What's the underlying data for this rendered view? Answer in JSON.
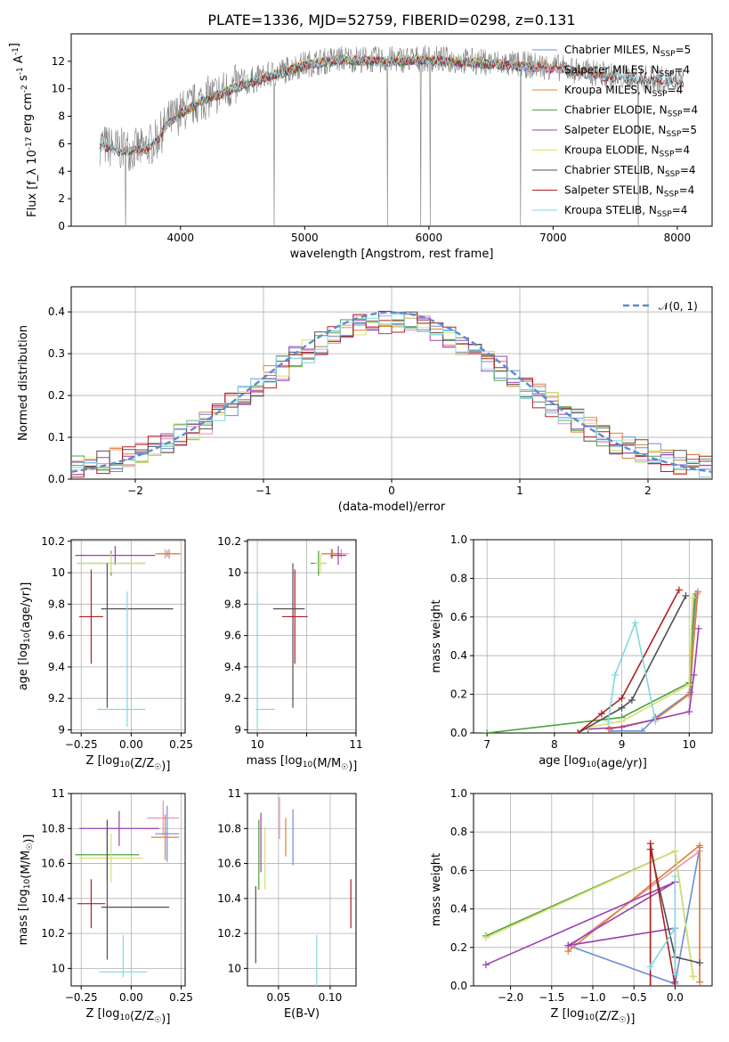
{
  "title": "PLATE=1336, MJD=52759, FIBERID=0298, z=0.131",
  "series_colors": {
    "chabrier_miles": "#6b8fd6",
    "salpeter_miles": "#e88fb8",
    "kroupa_miles": "#e08030",
    "chabrier_elodie": "#50a040",
    "salpeter_elodie": "#9a40b0",
    "kroupa_elodie": "#d8e070",
    "chabrier_stelib": "#505050",
    "salpeter_stelib": "#b02020",
    "kroupa_stelib": "#80d8e0",
    "normal": "#5b8bd0"
  },
  "chart_data": [
    {
      "id": "spectrum",
      "type": "line",
      "xlabel": "wavelength [Angstrom, rest frame]",
      "ylabel": "Flux [f_λ 10^-17 erg cm^-2 s^-1 A^-1]",
      "xlim": [
        3120,
        8280
      ],
      "ylim": [
        0,
        14
      ],
      "xticks": [
        4000,
        5000,
        6000,
        7000,
        8000
      ],
      "yticks": [
        0,
        2,
        4,
        6,
        8,
        10,
        12
      ],
      "grid": false,
      "legend_position": "top-right",
      "legend": [
        {
          "key": "chabrier_miles",
          "main": "Chabrier MILES, N",
          "sub": "SSP",
          "tail": "=5"
        },
        {
          "key": "salpeter_miles",
          "main": "Salpeter MILES, N",
          "sub": "SSP",
          "tail": "=4"
        },
        {
          "key": "kroupa_miles",
          "main": "Kroupa MILES, N",
          "sub": "SSP",
          "tail": "=4"
        },
        {
          "key": "chabrier_elodie",
          "main": "Chabrier ELODIE, N",
          "sub": "SSP",
          "tail": "=4"
        },
        {
          "key": "salpeter_elodie",
          "main": "Salpeter ELODIE, N",
          "sub": "SSP",
          "tail": "=5"
        },
        {
          "key": "kroupa_elodie",
          "main": "Kroupa ELODIE, N",
          "sub": "SSP",
          "tail": "=4"
        },
        {
          "key": "chabrier_stelib",
          "main": "Chabrier STELIB, N",
          "sub": "SSP",
          "tail": "=4"
        },
        {
          "key": "salpeter_stelib",
          "main": "Salpeter STELIB, N",
          "sub": "SSP",
          "tail": "=4"
        },
        {
          "key": "kroupa_stelib",
          "main": "Kroupa STELIB, N",
          "sub": "SSP",
          "tail": "=4"
        }
      ],
      "continuum": [
        [
          3350,
          6.0
        ],
        [
          3500,
          5.6
        ],
        [
          3700,
          5.6
        ],
        [
          3800,
          6.2
        ],
        [
          3900,
          7.6
        ],
        [
          4000,
          8.3
        ],
        [
          4200,
          9.3
        ],
        [
          4500,
          10.4
        ],
        [
          5000,
          11.8
        ],
        [
          5300,
          12.2
        ],
        [
          5600,
          12.1
        ],
        [
          6000,
          12.2
        ],
        [
          6500,
          11.9
        ],
        [
          7000,
          11.6
        ],
        [
          7500,
          10.9
        ],
        [
          8000,
          10.6
        ],
        [
          8050,
          10.5
        ]
      ]
    },
    {
      "id": "residuals",
      "type": "histogram",
      "xlabel": "(data-model)/error",
      "ylabel": "Normed distribution",
      "xlim": [
        -2.5,
        2.5
      ],
      "ylim": [
        0,
        0.46
      ],
      "xticks": [
        -2,
        -1,
        0,
        1,
        2
      ],
      "yticks": [
        0.0,
        0.1,
        0.2,
        0.3,
        0.4
      ],
      "grid": true,
      "legend_position": "top-right",
      "legend": [
        {
          "label": "𝒩(0, 1)",
          "style": "dashed"
        }
      ],
      "normal": {
        "mean": 0,
        "sigma": 1
      }
    },
    {
      "id": "age-vs-Z",
      "type": "errorbar",
      "xlabel": "Z [log10(Z/Z☉)]",
      "ylabel": "age [log10(age/yr)]",
      "xlim": [
        -0.3,
        0.27
      ],
      "ylim": [
        8.98,
        10.21
      ],
      "xticks": [
        -0.25,
        0.0,
        0.25
      ],
      "xtick_labels": [
        "−0.25",
        "0.00",
        "0.25"
      ],
      "yticks": [
        9.0,
        9.2,
        9.4,
        9.6,
        9.8,
        10.0,
        10.2
      ],
      "grid": true,
      "points": [
        {
          "s": "chabrier_miles",
          "x": 0.18,
          "xerr": 0.06,
          "y": 10.12,
          "yerr": 0.02
        },
        {
          "s": "salpeter_miles",
          "x": 0.17,
          "xerr": 0.05,
          "y": 10.12,
          "yerr": 0.03
        },
        {
          "s": "kroupa_miles",
          "x": 0.19,
          "xerr": 0.06,
          "y": 10.12,
          "yerr": 0.03
        },
        {
          "s": "chabrier_elodie",
          "x": -0.1,
          "xerr": 0.17,
          "y": 10.06,
          "yerr": 0.08
        },
        {
          "s": "salpeter_elodie",
          "x": -0.08,
          "xerr": 0.2,
          "y": 10.11,
          "yerr": 0.06
        },
        {
          "s": "kroupa_elodie",
          "x": -0.1,
          "xerr": 0.17,
          "y": 10.06,
          "yerr": 0.06
        },
        {
          "s": "chabrier_stelib",
          "x": -0.12,
          "xerr": 0.0,
          "y": 9.6,
          "yerr": 0.46
        },
        {
          "s": "chabrier_stelib",
          "x": 0.03,
          "xerr": 0.18,
          "y": 9.77,
          "yerr": 0.0
        },
        {
          "s": "salpeter_stelib",
          "x": -0.2,
          "xerr": 0.06,
          "y": 9.72,
          "yerr": 0.3
        },
        {
          "s": "kroupa_stelib",
          "x": -0.02,
          "xerr": 0.0,
          "y": 9.45,
          "yerr": 0.43
        },
        {
          "s": "kroupa_stelib",
          "x": -0.05,
          "xerr": 0.12,
          "y": 9.13,
          "yerr": 0.0
        }
      ]
    },
    {
      "id": "age-vs-mass",
      "type": "errorbar",
      "xlabel": "mass [log10(M/M☉)]",
      "ylabel": "",
      "xlim": [
        9.9,
        11.0
      ],
      "ylim": [
        8.98,
        10.21
      ],
      "xticks": [
        10,
        10.5,
        11
      ],
      "xtick_labels": [
        "10",
        "",
        "11"
      ],
      "yticks": [
        9.0,
        9.2,
        9.4,
        9.6,
        9.8,
        10.0,
        10.2
      ],
      "grid": true,
      "points": [
        {
          "s": "chabrier_miles",
          "x": 10.75,
          "xerr": 0.1,
          "y": 10.12,
          "yerr": 0.03
        },
        {
          "s": "salpeter_miles",
          "x": 10.85,
          "xerr": 0.08,
          "y": 10.12,
          "yerr": 0.03
        },
        {
          "s": "kroupa_miles",
          "x": 10.76,
          "xerr": 0.1,
          "y": 10.12,
          "yerr": 0.03
        },
        {
          "s": "chabrier_elodie",
          "x": 10.62,
          "xerr": 0.08,
          "y": 10.06,
          "yerr": 0.08
        },
        {
          "s": "salpeter_elodie",
          "x": 10.82,
          "xerr": 0.08,
          "y": 10.11,
          "yerr": 0.06
        },
        {
          "s": "kroupa_elodie",
          "x": 10.64,
          "xerr": 0.06,
          "y": 10.06,
          "yerr": 0.06
        },
        {
          "s": "chabrier_stelib",
          "x": 10.36,
          "xerr": 0.0,
          "y": 9.6,
          "yerr": 0.46
        },
        {
          "s": "chabrier_stelib",
          "x": 10.32,
          "xerr": 0.16,
          "y": 9.77,
          "yerr": 0.0
        },
        {
          "s": "salpeter_stelib",
          "x": 10.38,
          "xerr": 0.13,
          "y": 9.72,
          "yerr": 0.3
        },
        {
          "s": "kroupa_stelib",
          "x": 10.0,
          "xerr": 0.0,
          "y": 9.45,
          "yerr": 0.43
        },
        {
          "s": "kroupa_stelib",
          "x": 10.08,
          "xerr": 0.1,
          "y": 9.13,
          "yerr": 0.0
        }
      ]
    },
    {
      "id": "mass-weight-vs-age",
      "type": "line",
      "xlabel": "age [log10(age/yr)]",
      "ylabel": "mass weight",
      "xlim": [
        6.8,
        10.34
      ],
      "ylim": [
        0,
        1.0
      ],
      "xticks": [
        7,
        8,
        9,
        10
      ],
      "yticks": [
        0.0,
        0.2,
        0.4,
        0.6,
        0.8,
        1.0
      ],
      "grid": true,
      "series": [
        {
          "s": "chabrier_miles",
          "points": [
            [
              8.85,
              0.01
            ],
            [
              9.3,
              0.01
            ],
            [
              9.5,
              0.08
            ],
            [
              10.02,
              0.21
            ],
            [
              10.1,
              0.72
            ]
          ]
        },
        {
          "s": "salpeter_miles",
          "points": [
            [
              8.8,
              0.02
            ],
            [
              9.5,
              0.07
            ],
            [
              10.0,
              0.2
            ],
            [
              10.12,
              0.72
            ]
          ]
        },
        {
          "s": "kroupa_miles",
          "points": [
            [
              8.82,
              0.02
            ],
            [
              9.5,
              0.07
            ],
            [
              10.0,
              0.2
            ],
            [
              10.13,
              0.73
            ]
          ]
        },
        {
          "s": "chabrier_elodie",
          "points": [
            [
              7.0,
              0.0
            ],
            [
              9.0,
              0.08
            ],
            [
              10.0,
              0.26
            ],
            [
              10.08,
              0.7
            ]
          ]
        },
        {
          "s": "salpeter_elodie",
          "points": [
            [
              8.5,
              0.02
            ],
            [
              9.0,
              0.03
            ],
            [
              10.0,
              0.11
            ],
            [
              10.07,
              0.3
            ],
            [
              10.14,
              0.54
            ]
          ]
        },
        {
          "s": "kroupa_elodie",
          "points": [
            [
              8.5,
              0.03
            ],
            [
              9.0,
              0.06
            ],
            [
              10.0,
              0.25
            ],
            [
              10.05,
              0.7
            ]
          ]
        },
        {
          "s": "chabrier_stelib",
          "points": [
            [
              8.35,
              0.0
            ],
            [
              9.0,
              0.13
            ],
            [
              9.15,
              0.17
            ],
            [
              9.95,
              0.71
            ]
          ]
        },
        {
          "s": "salpeter_stelib",
          "points": [
            [
              8.35,
              0.0
            ],
            [
              8.7,
              0.1
            ],
            [
              9.0,
              0.18
            ],
            [
              9.85,
              0.74
            ]
          ]
        },
        {
          "s": "kroupa_stelib",
          "points": [
            [
              8.8,
              0.06
            ],
            [
              8.9,
              0.3
            ],
            [
              9.2,
              0.57
            ],
            [
              9.5,
              0.06
            ]
          ]
        }
      ]
    },
    {
      "id": "mass-vs-Z",
      "type": "errorbar",
      "xlabel": "Z [log10(Z/Z☉)]",
      "ylabel": "mass [log10(M/M☉)]",
      "xlim": [
        -0.3,
        0.27
      ],
      "ylim": [
        9.9,
        11.0
      ],
      "xticks": [
        -0.25,
        0.0,
        0.25
      ],
      "xtick_labels": [
        "−0.25",
        "0.00",
        "0.25"
      ],
      "yticks": [
        10.0,
        10.2,
        10.4,
        10.6,
        10.8,
        11.0
      ],
      "grid": true,
      "points": [
        {
          "s": "chabrier_miles",
          "x": 0.18,
          "xerr": 0.06,
          "y": 10.77,
          "yerr": 0.16
        },
        {
          "s": "salpeter_miles",
          "x": 0.16,
          "xerr": 0.08,
          "y": 10.86,
          "yerr": 0.1
        },
        {
          "s": "kroupa_miles",
          "x": 0.17,
          "xerr": 0.07,
          "y": 10.75,
          "yerr": 0.13
        },
        {
          "s": "chabrier_elodie",
          "x": -0.12,
          "xerr": 0.16,
          "y": 10.65,
          "yerr": 0.15
        },
        {
          "s": "salpeter_elodie",
          "x": -0.06,
          "xerr": 0.2,
          "y": 10.8,
          "yerr": 0.1
        },
        {
          "s": "kroupa_elodie",
          "x": -0.1,
          "xerr": 0.16,
          "y": 10.63,
          "yerr": 0.14
        },
        {
          "s": "chabrier_stelib",
          "x": -0.12,
          "xerr": 0.0,
          "y": 10.45,
          "yerr": 0.4
        },
        {
          "s": "chabrier_stelib",
          "x": 0.02,
          "xerr": 0.17,
          "y": 10.35,
          "yerr": 0.0
        },
        {
          "s": "salpeter_stelib",
          "x": -0.2,
          "xerr": 0.07,
          "y": 10.37,
          "yerr": 0.14
        },
        {
          "s": "kroupa_stelib",
          "x": -0.04,
          "xerr": 0.0,
          "y": 10.07,
          "yerr": 0.12
        },
        {
          "s": "kroupa_stelib",
          "x": -0.04,
          "xerr": 0.12,
          "y": 9.98,
          "yerr": 0.0
        }
      ]
    },
    {
      "id": "mass-vs-EBV",
      "type": "errorbar",
      "xlabel": "E(B-V)",
      "ylabel": "",
      "xlim": [
        0.02,
        0.125
      ],
      "ylim": [
        9.9,
        11.0
      ],
      "xticks": [
        0.05,
        0.1
      ],
      "xtick_labels": [
        "0.05",
        "0.10"
      ],
      "yticks": [
        10.0,
        10.2,
        10.4,
        10.6,
        10.8,
        11.0
      ],
      "grid": true,
      "points": [
        {
          "s": "chabrier_miles",
          "x": 0.064,
          "xerr": 0.0,
          "y": 10.75,
          "yerr": 0.16
        },
        {
          "s": "salpeter_miles",
          "x": 0.051,
          "xerr": 0.0,
          "y": 10.86,
          "yerr": 0.12
        },
        {
          "s": "kroupa_miles",
          "x": 0.057,
          "xerr": 0.0,
          "y": 10.75,
          "yerr": 0.11
        },
        {
          "s": "chabrier_elodie",
          "x": 0.031,
          "xerr": 0.0,
          "y": 10.65,
          "yerr": 0.2
        },
        {
          "s": "salpeter_elodie",
          "x": 0.033,
          "xerr": 0.0,
          "y": 10.72,
          "yerr": 0.17
        },
        {
          "s": "kroupa_elodie",
          "x": 0.037,
          "xerr": 0.0,
          "y": 10.63,
          "yerr": 0.18
        },
        {
          "s": "chabrier_stelib",
          "x": 0.028,
          "xerr": 0.0,
          "y": 10.25,
          "yerr": 0.22
        },
        {
          "s": "salpeter_stelib",
          "x": 0.12,
          "xerr": 0.0,
          "y": 10.37,
          "yerr": 0.14
        },
        {
          "s": "kroupa_stelib",
          "x": 0.087,
          "xerr": 0.0,
          "y": 10.02,
          "yerr": 0.17
        }
      ]
    },
    {
      "id": "mass-weight-vs-Z",
      "type": "line",
      "xlabel": "Z [log10(Z/Z☉)]",
      "ylabel": "mass weight",
      "xlim": [
        -2.45,
        0.45
      ],
      "ylim": [
        0,
        1.0
      ],
      "xticks": [
        -2.0,
        -1.5,
        -1.0,
        -0.5,
        0.0
      ],
      "xtick_labels": [
        "−2.0",
        "−1.5",
        "−1.0",
        "−0.5",
        "0.0"
      ],
      "yticks": [
        0.0,
        0.2,
        0.4,
        0.6,
        0.8,
        1.0
      ],
      "grid": true,
      "series": [
        {
          "s": "chabrier_miles",
          "points": [
            [
              -1.3,
              0.21
            ],
            [
              0.0,
              0.01
            ],
            [
              0.3,
              0.72
            ]
          ]
        },
        {
          "s": "salpeter_miles",
          "points": [
            [
              -1.3,
              0.2
            ],
            [
              0.3,
              0.7
            ],
            [
              0.3,
              0.02
            ]
          ]
        },
        {
          "s": "kroupa_miles",
          "points": [
            [
              -1.3,
              0.18
            ],
            [
              0.3,
              0.73
            ],
            [
              0.3,
              0.02
            ]
          ]
        },
        {
          "s": "chabrier_elodie",
          "points": [
            [
              -2.3,
              0.26
            ],
            [
              0.0,
              0.7
            ],
            [
              0.22,
              0.05
            ]
          ]
        },
        {
          "s": "salpeter_elodie",
          "points": [
            [
              -2.3,
              0.11
            ],
            [
              0.0,
              0.54
            ],
            [
              -1.3,
              0.21
            ],
            [
              0.0,
              0.3
            ],
            [
              0.0,
              0.02
            ]
          ]
        },
        {
          "s": "kroupa_elodie",
          "points": [
            [
              -2.3,
              0.25
            ],
            [
              0.0,
              0.7
            ],
            [
              0.22,
              0.05
            ]
          ]
        },
        {
          "s": "chabrier_stelib",
          "points": [
            [
              -0.3,
              0.0
            ],
            [
              -0.3,
              0.71
            ],
            [
              0.0,
              0.15
            ],
            [
              0.3,
              0.12
            ]
          ]
        },
        {
          "s": "salpeter_stelib",
          "points": [
            [
              -0.3,
              0.0
            ],
            [
              -0.3,
              0.74
            ],
            [
              0.0,
              0.0
            ]
          ]
        },
        {
          "s": "kroupa_stelib",
          "points": [
            [
              -0.3,
              0.1
            ],
            [
              0.0,
              0.3
            ],
            [
              0.0,
              0.57
            ],
            [
              0.0,
              0.06
            ]
          ]
        }
      ]
    }
  ]
}
